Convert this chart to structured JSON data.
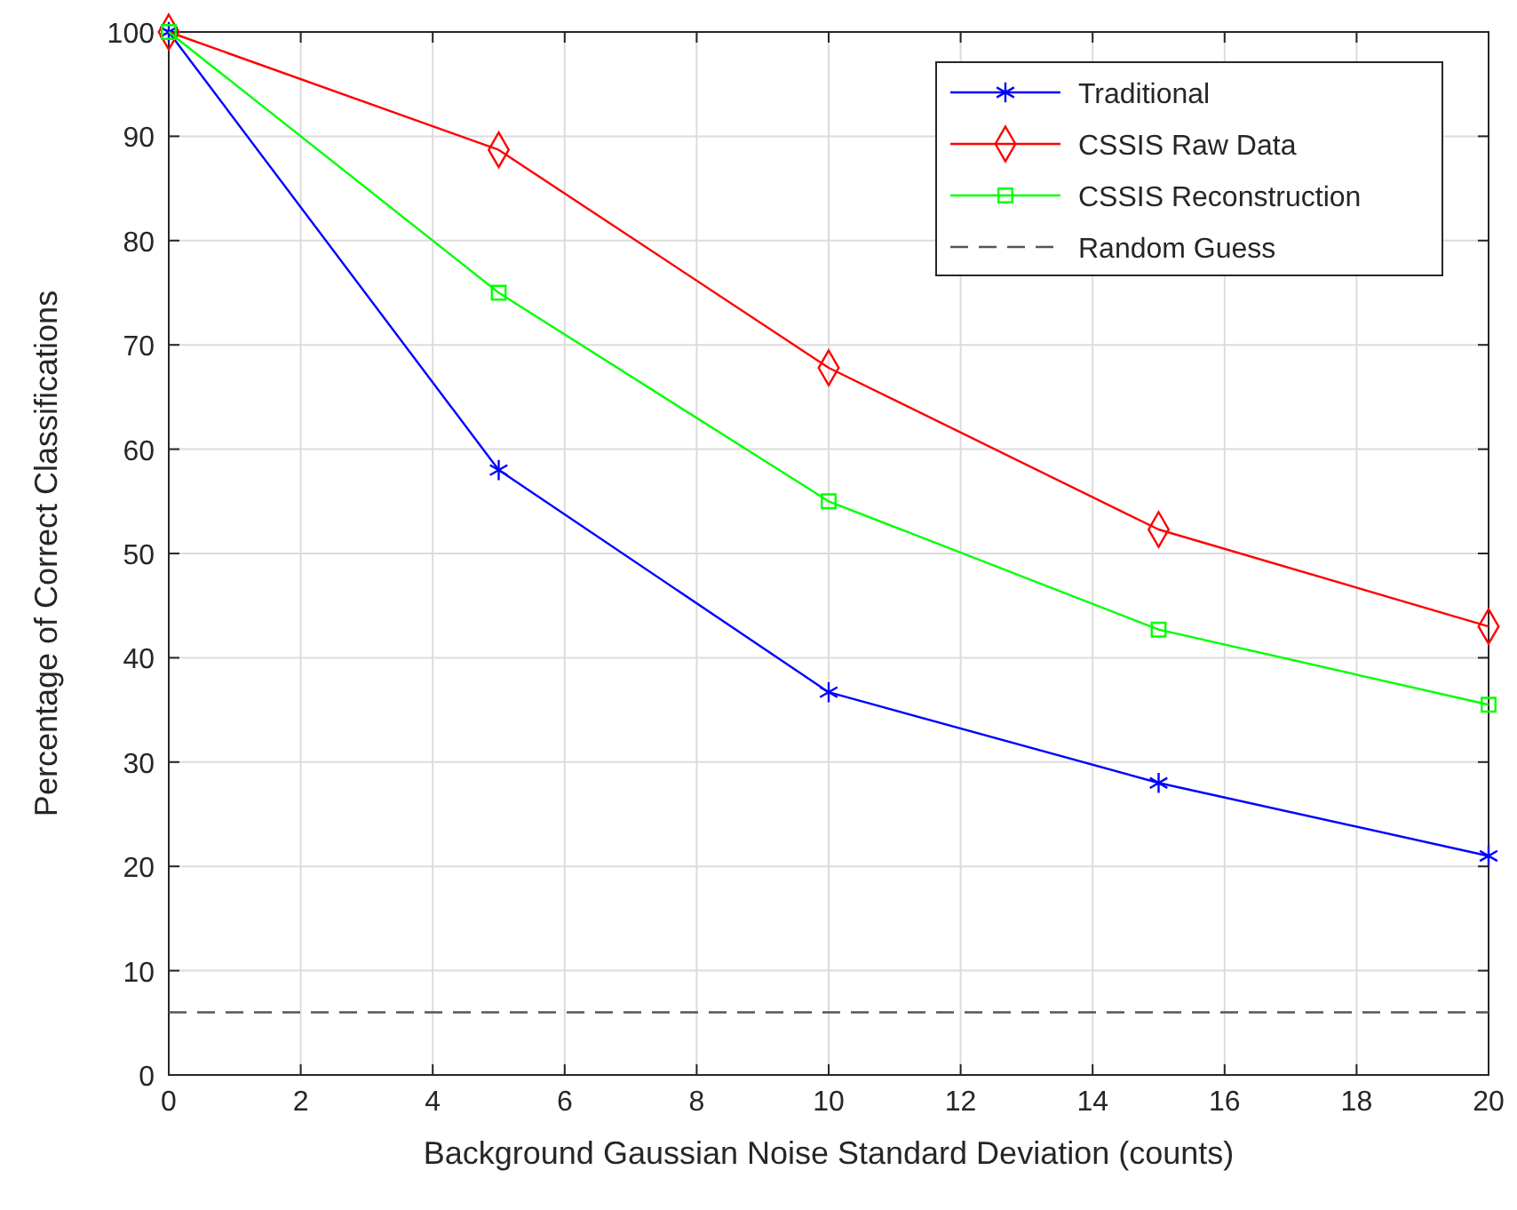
{
  "chart_data": {
    "type": "line",
    "xlabel": "Background Gaussian Noise Standard Deviation (counts)",
    "ylabel": "Percentage of Correct Classifications",
    "x": [
      0,
      5,
      10,
      15,
      20
    ],
    "series": [
      {
        "name": "Traditional",
        "color": "#0000ff",
        "marker": "cross",
        "values": [
          100,
          58,
          36.7,
          28,
          21
        ]
      },
      {
        "name": "CSSIS Raw Data",
        "color": "#ff0000",
        "marker": "diamond",
        "values": [
          100,
          88.7,
          67.8,
          52.3,
          43
        ]
      },
      {
        "name": "CSSIS Reconstruction",
        "color": "#00ff00",
        "marker": "square",
        "values": [
          100,
          75,
          55,
          42.7,
          35.5
        ]
      },
      {
        "name": "Random Guess",
        "color": "#555555",
        "marker": "none",
        "line_style": "dashed",
        "x": [
          0,
          20
        ],
        "values": [
          6,
          6
        ]
      }
    ],
    "xlim": [
      0,
      20
    ],
    "ylim": [
      0,
      100
    ],
    "xticks": [
      0,
      2,
      4,
      6,
      8,
      10,
      12,
      14,
      16,
      18,
      20
    ],
    "yticks": [
      0,
      10,
      20,
      30,
      40,
      50,
      60,
      70,
      80,
      90,
      100
    ],
    "grid": true,
    "legend": "top right"
  }
}
